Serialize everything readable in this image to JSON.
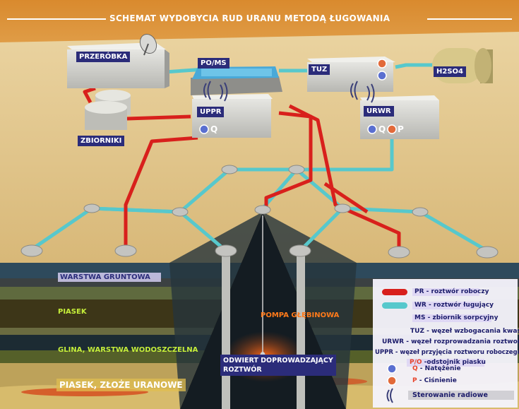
{
  "title": "SCHEMAT WYDOBYCIA RUD URANU METODĄ ŁUGOWANIA",
  "facilities": {
    "przerobka": "PRZERÓBKA",
    "poms": "PO/MS",
    "tuz": "TUZ",
    "h2so4": "H2SO4",
    "uppr": "UPPR",
    "urwr": "URWR",
    "zbiorniki": "ZBIORNIKI",
    "q_symbol": "Q",
    "p_symbol": "P"
  },
  "layers": {
    "gruntowa": "WARSTWA GRUNTOWA",
    "piasek": "PIASEK",
    "glina": "GLINA, WARSTWA WODOSZCZELNA",
    "zloze": "PIASEK, ZŁOŻE URANOWE"
  },
  "equipment": {
    "pompa": "POMPA GŁĘBINOWA",
    "odwiert_line1": "ODWIERT DOPROWADZAJĄCY",
    "odwiert_line2": "ROZTWÓR"
  },
  "legend": {
    "pr_abbr": "PR",
    "pr_text": " - roztwór roboczy",
    "wr_abbr": "WR",
    "wr_text": " - roztwór ługujący",
    "ms_abbr": "MS",
    "ms_text": " - zbiornik sorpcyjny",
    "tuz_abbr": "TUZ",
    "tuz_text": " - węzeł wzbogacania kwasem",
    "urwr_abbr": "URWR",
    "urwr_text": " - węzeł rozprowadzania roztworu",
    "uppr_abbr": "UPPR",
    "uppr_text": " - węzeł przyjęcia roztworu roboczego",
    "po_abbr": "P/O",
    "po_text": " -odstojnik piasku",
    "q_abbr": "Q",
    "q_text": " - Natężenie",
    "p_abbr": "P",
    "p_text": " - Ciśnienie",
    "radio_text": "Sterowanie radiowe"
  },
  "colors": {
    "pr_pipe": "#d8201c",
    "wr_pipe": "#57c8cc",
    "label_bg": "#2b2c7a"
  }
}
